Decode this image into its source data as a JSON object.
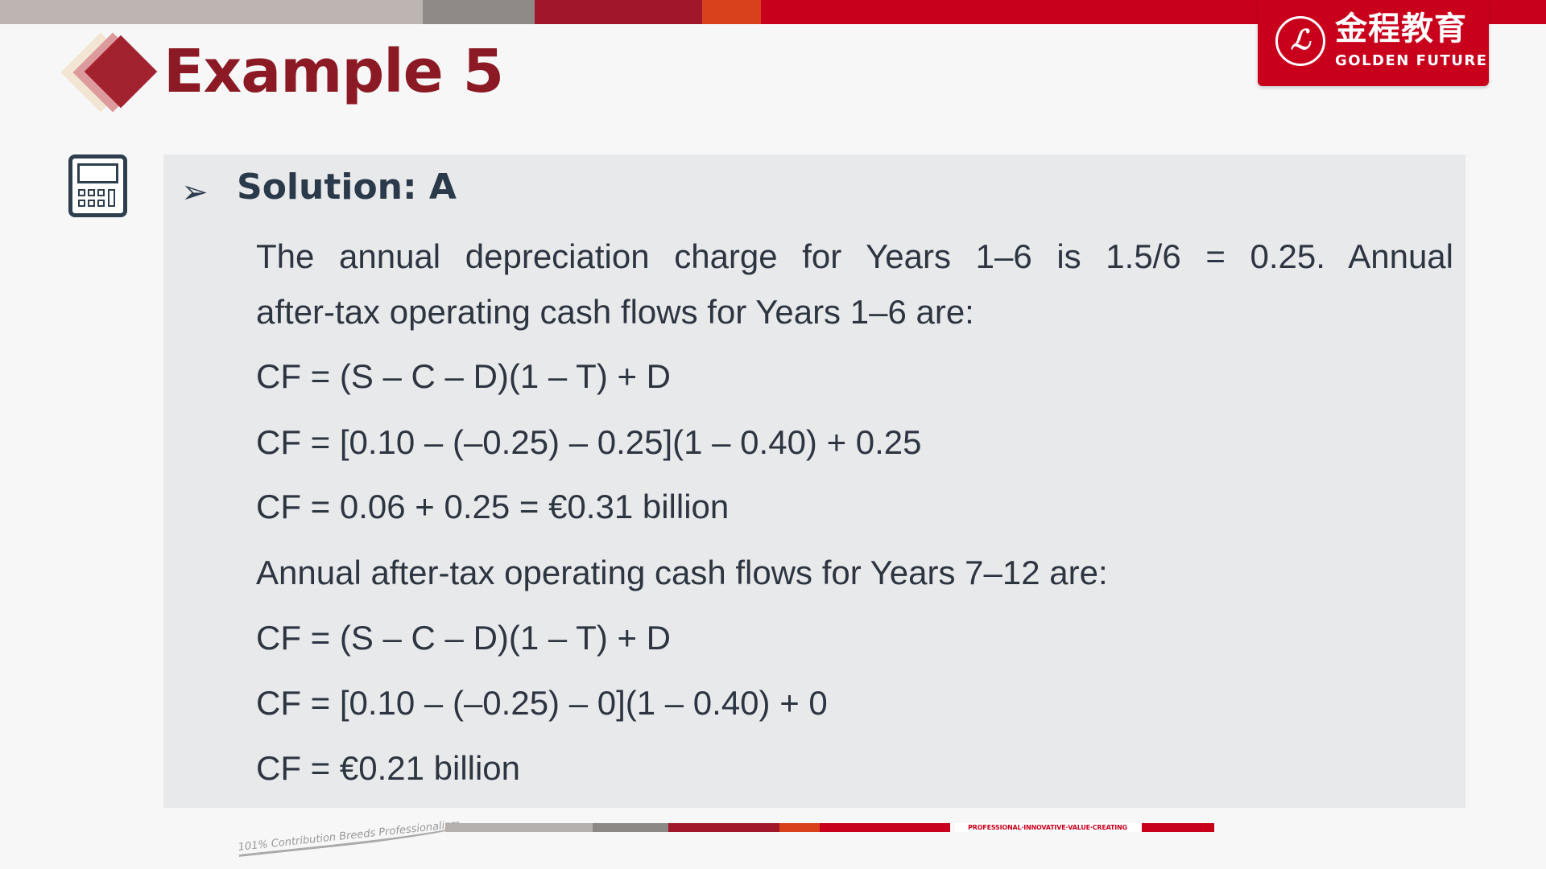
{
  "colors": {
    "brand_red": "#c8001b",
    "title_red": "#8b1a24",
    "text_dark": "#2d3540",
    "panel_bg": "#e8e9eb"
  },
  "logo": {
    "chinese": "金程教育",
    "english": "GOLDEN FUTURE",
    "seal_glyph": "ℒ"
  },
  "title": "Example 5",
  "icons": {
    "calculator": "calculator-icon",
    "bullet": "arrow-bullet-icon"
  },
  "solution": {
    "heading": "Solution: A",
    "lines": [
      "The annual depreciation charge for Years 1–6 is 1.5/6 = 0.25. Annual",
      "after-tax operating cash flows for Years 1–6 are:",
      "CF = (S – C – D)(1 – T) + D",
      "CF = [0.10 – (–0.25) – 0.25](1 – 0.40) + 0.25",
      "CF = 0.06 + 0.25 = €0.31 billion",
      "Annual after-tax operating cash flows for Years 7–12 are:",
      "CF = (S – C – D)(1 – T) + D",
      "CF = [0.10 – (–0.25) – 0](1 – 0.40) + 0",
      "CF = €0.21 billion"
    ]
  },
  "footer": {
    "slogan": "101% Contribution Breeds Professionalism",
    "motto": "PROFESSIONAL·INNOVATIVE·VALUE·CREATING"
  }
}
